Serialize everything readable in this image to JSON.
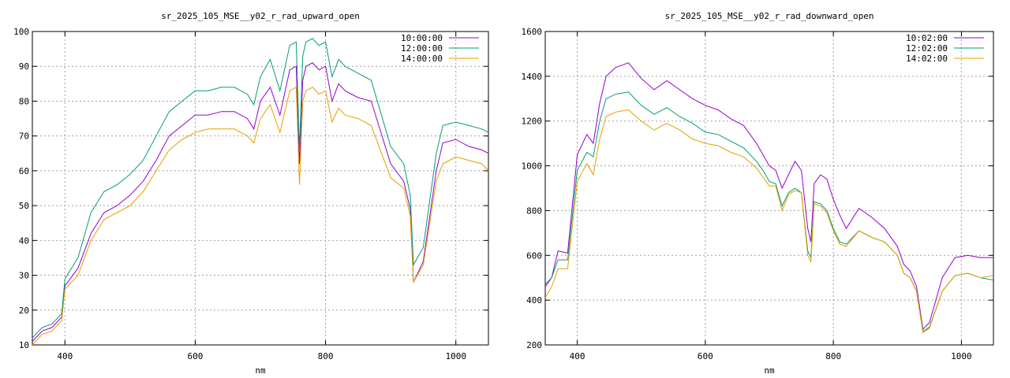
{
  "chart_data": [
    {
      "type": "line",
      "title": "sr_2025_105_MSE__y02_r_rad_upward_open",
      "xlabel": "nm",
      "ylabel": "",
      "xlim": [
        350,
        1050
      ],
      "ylim": [
        10,
        100
      ],
      "xticks": [
        400,
        600,
        800,
        1000
      ],
      "yticks": [
        10,
        20,
        30,
        40,
        50,
        60,
        70,
        80,
        90,
        100
      ],
      "grid": true,
      "legend": "top-right",
      "series": [
        {
          "name": "10:00:00",
          "color": "#9400d3",
          "x": [
            350,
            365,
            380,
            395,
            400,
            420,
            440,
            460,
            480,
            500,
            520,
            540,
            560,
            580,
            600,
            620,
            640,
            660,
            680,
            690,
            700,
            715,
            730,
            745,
            755,
            760,
            765,
            770,
            780,
            790,
            800,
            810,
            820,
            830,
            850,
            870,
            900,
            920,
            930,
            935,
            950,
            970,
            980,
            1000,
            1020,
            1040,
            1050
          ],
          "y": [
            11,
            14,
            15,
            18,
            27,
            32,
            42,
            48,
            50,
            53,
            57,
            63,
            70,
            73,
            76,
            76,
            77,
            77,
            75,
            72,
            80,
            84,
            76,
            89,
            90,
            62,
            86,
            90,
            91,
            89,
            90,
            80,
            85,
            83,
            81,
            80,
            62,
            57,
            49,
            28,
            34,
            60,
            68,
            69,
            67,
            66,
            65
          ]
        },
        {
          "name": "12:00:00",
          "color": "#009e73",
          "x": [
            350,
            365,
            380,
            395,
            400,
            420,
            440,
            460,
            480,
            500,
            520,
            540,
            560,
            580,
            600,
            620,
            640,
            660,
            680,
            690,
            700,
            715,
            730,
            745,
            755,
            760,
            765,
            770,
            780,
            790,
            800,
            810,
            820,
            830,
            850,
            870,
            900,
            920,
            930,
            935,
            950,
            970,
            980,
            1000,
            1020,
            1040,
            1050
          ],
          "y": [
            12,
            15,
            16,
            19,
            29,
            35,
            48,
            54,
            56,
            59,
            63,
            70,
            77,
            80,
            83,
            83,
            84,
            84,
            82,
            79,
            87,
            92,
            83,
            96,
            97,
            66,
            93,
            97,
            98,
            96,
            97,
            87,
            92,
            90,
            88,
            86,
            67,
            62,
            53,
            33,
            38,
            65,
            73,
            74,
            73,
            72,
            71
          ]
        },
        {
          "name": "14:00:00",
          "color": "#e69f00",
          "x": [
            350,
            365,
            380,
            395,
            400,
            420,
            440,
            460,
            480,
            500,
            520,
            540,
            560,
            580,
            600,
            620,
            640,
            660,
            680,
            690,
            700,
            715,
            730,
            745,
            755,
            760,
            765,
            770,
            780,
            790,
            800,
            810,
            820,
            830,
            850,
            870,
            900,
            920,
            930,
            935,
            950,
            970,
            980,
            1000,
            1020,
            1040,
            1050
          ],
          "y": [
            10,
            13,
            14,
            17,
            26,
            30,
            40,
            46,
            48,
            50,
            54,
            60,
            66,
            69,
            71,
            72,
            72,
            72,
            70,
            68,
            75,
            79,
            71,
            83,
            84,
            56,
            80,
            83,
            84,
            82,
            83,
            74,
            78,
            76,
            75,
            73,
            58,
            55,
            47,
            28,
            33,
            57,
            62,
            64,
            63,
            62,
            60
          ]
        }
      ]
    },
    {
      "type": "line",
      "title": "sr_2025_105_MSE__y02_r_rad_downward_open",
      "xlabel": "nm",
      "ylabel": "",
      "xlim": [
        350,
        1050
      ],
      "ylim": [
        200,
        1600
      ],
      "xticks": [
        400,
        600,
        800,
        1000
      ],
      "yticks": [
        200,
        400,
        600,
        800,
        1000,
        1200,
        1400,
        1600
      ],
      "grid": true,
      "legend": "top-right",
      "series": [
        {
          "name": "10:02:00",
          "color": "#9400d3",
          "x": [
            350,
            360,
            370,
            385,
            400,
            415,
            425,
            435,
            445,
            460,
            480,
            500,
            520,
            540,
            560,
            580,
            600,
            620,
            640,
            660,
            680,
            690,
            700,
            710,
            720,
            730,
            740,
            750,
            760,
            765,
            770,
            780,
            790,
            800,
            810,
            820,
            840,
            860,
            880,
            900,
            910,
            920,
            930,
            940,
            950,
            970,
            990,
            1010,
            1030,
            1050
          ],
          "y": [
            460,
            500,
            620,
            610,
            1050,
            1140,
            1100,
            1280,
            1400,
            1440,
            1460,
            1390,
            1340,
            1380,
            1340,
            1300,
            1270,
            1250,
            1210,
            1180,
            1100,
            1050,
            1000,
            980,
            900,
            960,
            1020,
            980,
            720,
            660,
            920,
            960,
            940,
            850,
            780,
            720,
            810,
            770,
            720,
            640,
            560,
            530,
            460,
            270,
            300,
            500,
            590,
            600,
            590,
            590
          ]
        },
        {
          "name": "12:02:00",
          "color": "#009e73",
          "x": [
            350,
            360,
            370,
            385,
            400,
            415,
            425,
            435,
            445,
            460,
            480,
            500,
            520,
            540,
            560,
            580,
            600,
            620,
            640,
            660,
            680,
            690,
            700,
            710,
            720,
            730,
            740,
            750,
            760,
            765,
            770,
            780,
            790,
            800,
            810,
            820,
            840,
            860,
            880,
            900,
            910,
            920,
            930,
            940,
            950,
            970,
            990,
            1010,
            1030,
            1050
          ],
          "y": [
            470,
            500,
            580,
            580,
            980,
            1060,
            1040,
            1200,
            1300,
            1320,
            1330,
            1270,
            1230,
            1260,
            1220,
            1190,
            1150,
            1140,
            1110,
            1080,
            1020,
            980,
            930,
            920,
            820,
            880,
            900,
            880,
            620,
            590,
            840,
            830,
            800,
            720,
            660,
            650,
            710,
            680,
            660,
            600,
            520,
            500,
            440,
            260,
            280,
            440,
            510,
            520,
            500,
            490
          ]
        },
        {
          "name": "14:02:00",
          "color": "#e69f00",
          "x": [
            350,
            360,
            370,
            385,
            400,
            415,
            425,
            435,
            445,
            460,
            480,
            500,
            520,
            540,
            560,
            580,
            600,
            620,
            640,
            660,
            680,
            690,
            700,
            710,
            720,
            730,
            740,
            750,
            760,
            765,
            770,
            780,
            790,
            800,
            810,
            820,
            840,
            860,
            880,
            900,
            910,
            920,
            930,
            940,
            950,
            970,
            990,
            1010,
            1030,
            1050
          ],
          "y": [
            410,
            460,
            540,
            540,
            930,
            1010,
            960,
            1120,
            1220,
            1240,
            1250,
            1200,
            1160,
            1190,
            1160,
            1120,
            1100,
            1090,
            1060,
            1040,
            990,
            950,
            910,
            910,
            800,
            870,
            890,
            880,
            600,
            570,
            830,
            820,
            790,
            710,
            650,
            640,
            710,
            680,
            660,
            600,
            520,
            500,
            440,
            255,
            275,
            440,
            510,
            520,
            500,
            510
          ]
        }
      ]
    }
  ]
}
